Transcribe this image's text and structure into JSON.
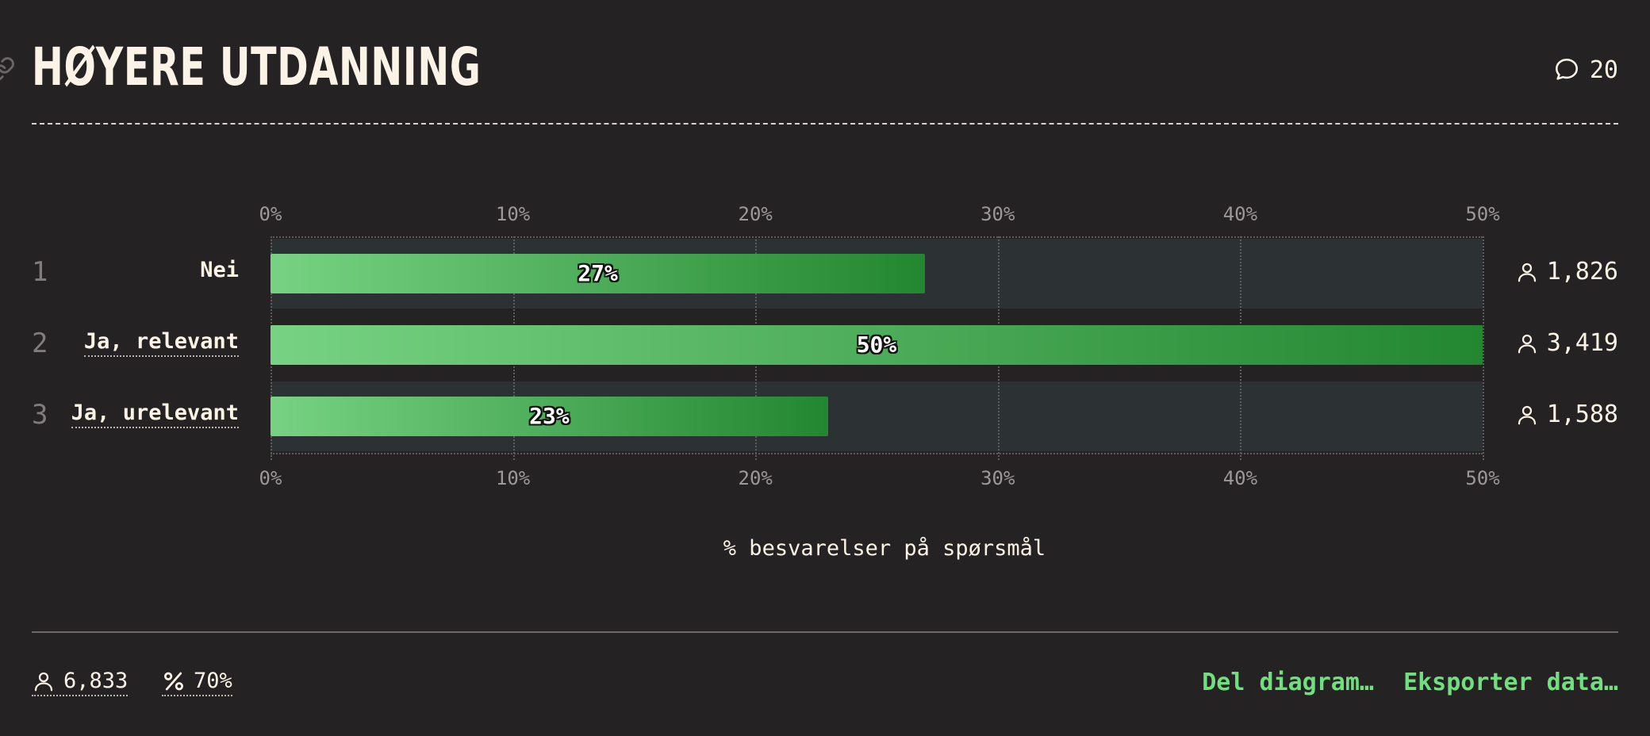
{
  "header": {
    "title": "HØYERE UTDANNING",
    "comment_count": "20",
    "link_icon": "link-icon",
    "comment_icon": "speech-bubble-icon"
  },
  "chart_data": {
    "type": "bar",
    "orientation": "horizontal",
    "categories": [
      "Nei",
      "Ja, relevant",
      "Ja, urelevant"
    ],
    "values": [
      27,
      50,
      23
    ],
    "value_labels": [
      "27%",
      "50%",
      "23%"
    ],
    "row_numbers": [
      "1",
      "2",
      "3"
    ],
    "respondent_counts": [
      "1,826",
      "3,419",
      "1,588"
    ],
    "xlim": [
      0,
      50
    ],
    "x_ticks": [
      "0%",
      "10%",
      "20%",
      "30%",
      "40%",
      "50%"
    ],
    "xlabel": "% besvarelser på spørsmål",
    "grid": true,
    "bar_gradient": [
      "#77d383",
      "#238630"
    ]
  },
  "footer": {
    "total_respondents": "6,833",
    "response_rate": "70%",
    "share_label": "Del diagram…",
    "export_label": "Eksporter data…",
    "person_icon": "person-icon",
    "percent_icon": "percent-icon"
  },
  "colors": {
    "background": "#252223",
    "text": "#fbf3e5",
    "accent": "#6fe07d",
    "row_background": "#2c3234"
  }
}
